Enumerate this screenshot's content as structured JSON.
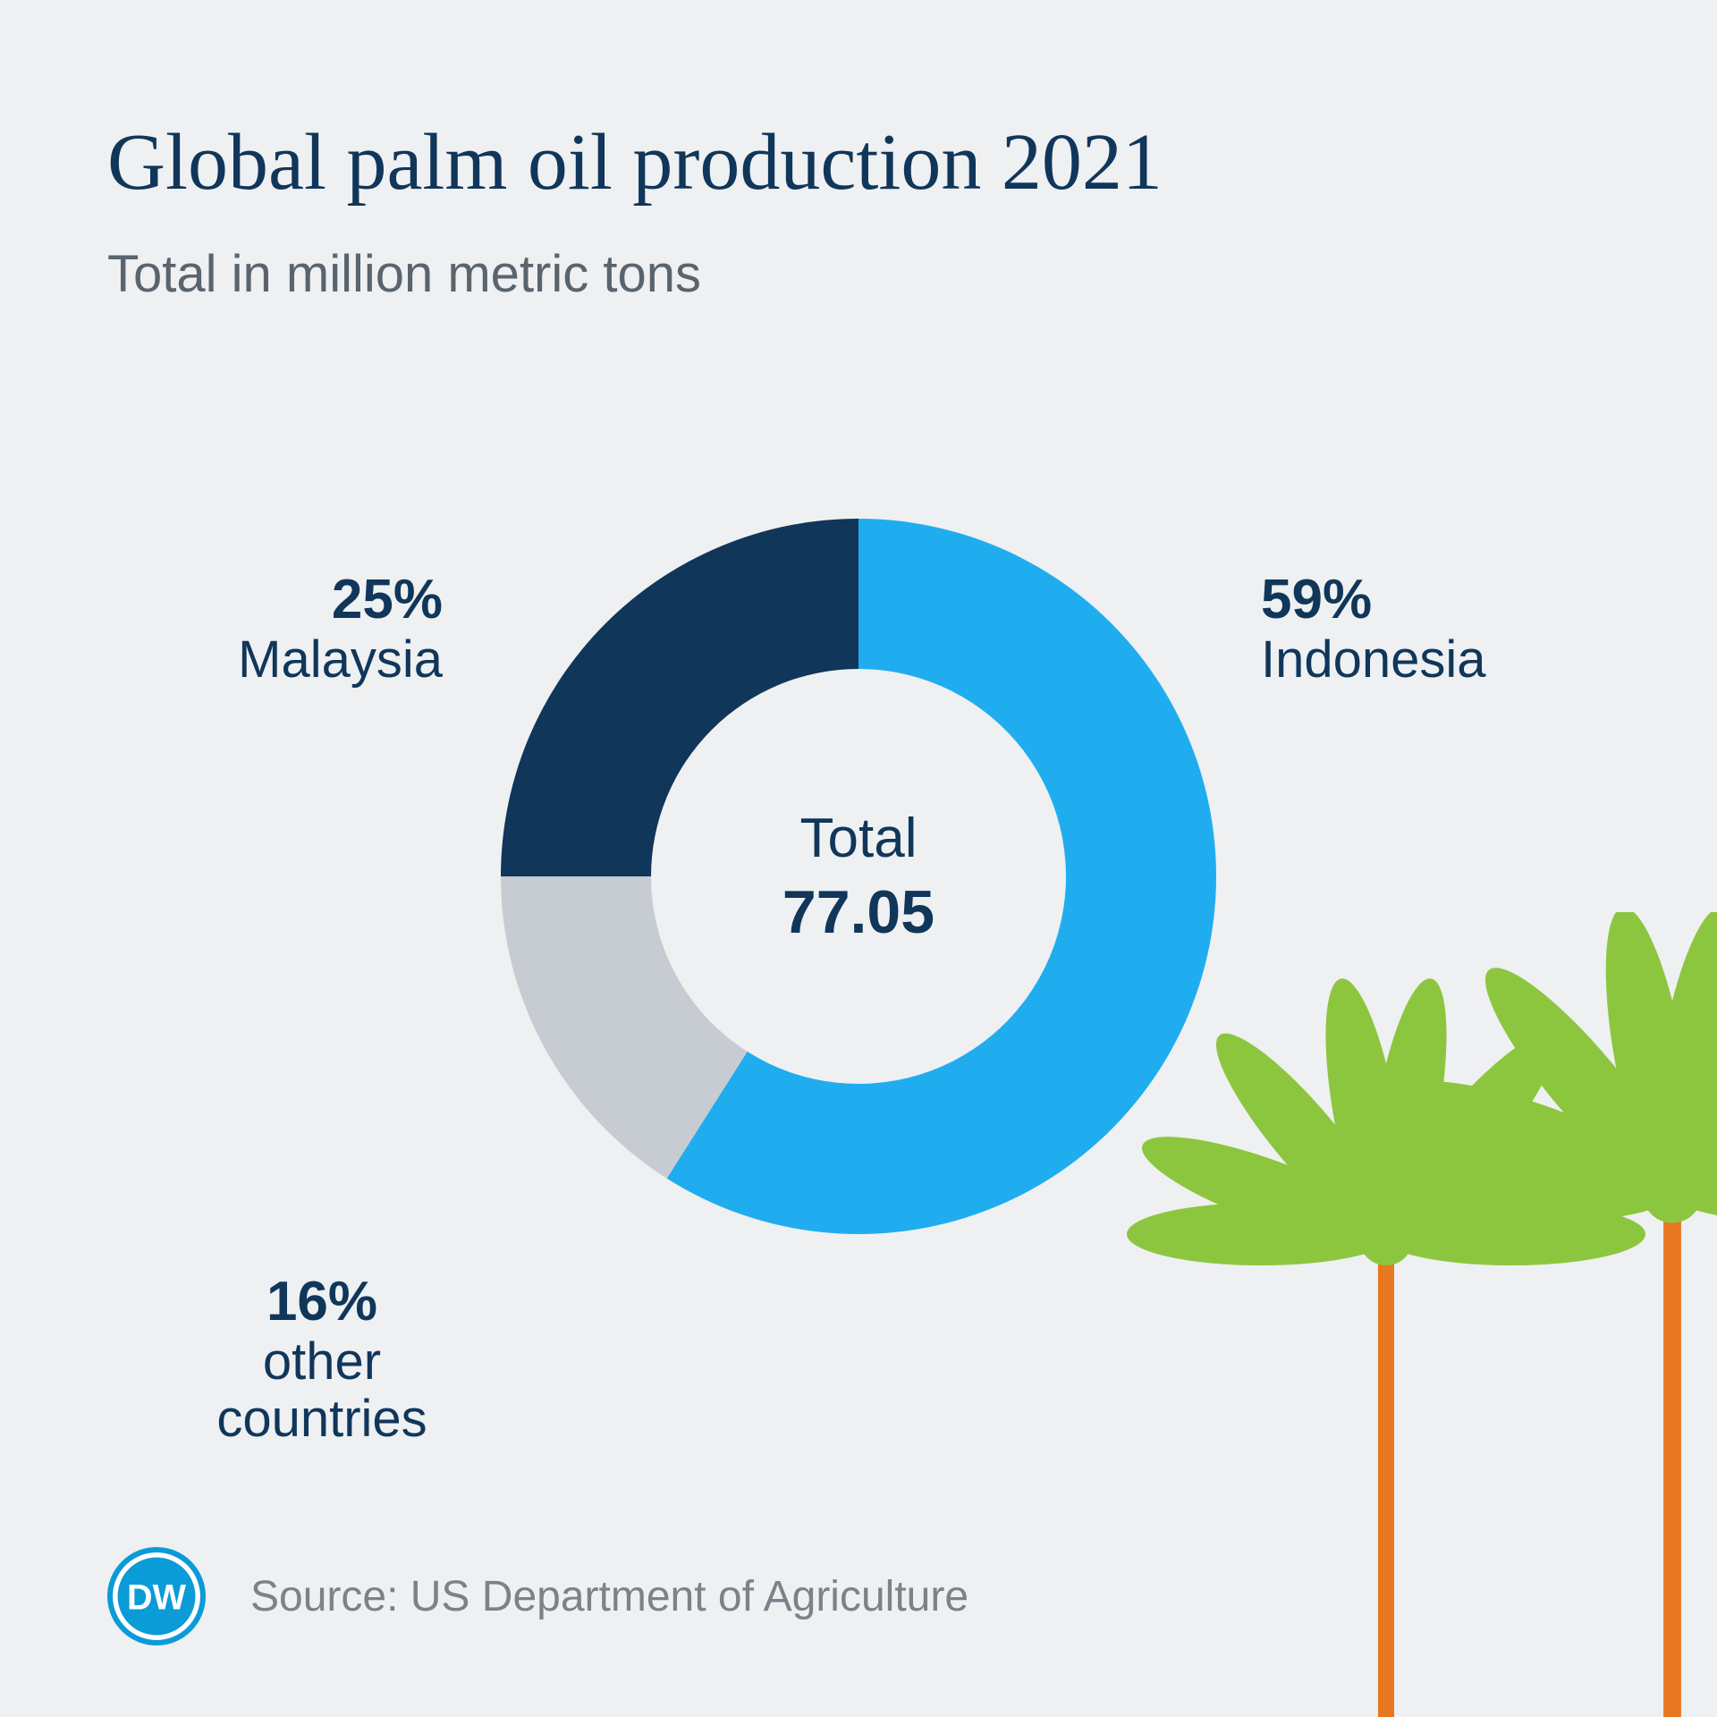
{
  "title": "Global palm oil production 2021",
  "subtitle": "Total in million metric tons",
  "donut": {
    "type": "donut",
    "inner_radius_ratio": 0.58,
    "start_angle_deg": 0,
    "rotation_deg": 0,
    "background_color": "#eef0f2",
    "slices": [
      {
        "label": "Indonesia",
        "percent": 59,
        "color": "#20adef"
      },
      {
        "label": "other countries",
        "percent": 16,
        "color": "#c6ccd1"
      },
      {
        "label": "Malaysia",
        "percent": 25,
        "color": "#10365a"
      }
    ],
    "center": {
      "label": "Total",
      "value": "77.05"
    },
    "label_fontsize_pct": 62,
    "label_fontsize_name": 58,
    "label_color": "#10365a"
  },
  "palms": {
    "frond_color": "#8cc63f",
    "trunk_color": "#e87722"
  },
  "footer": {
    "logo_text": "DW",
    "logo_bg": "#0b9bd7",
    "logo_fg": "#ffffff",
    "source": "Source: US Department of Agriculture"
  },
  "colors": {
    "title": "#10365a",
    "subtitle": "#5a646e",
    "source": "#7a828a",
    "background": "#eef0f2"
  }
}
